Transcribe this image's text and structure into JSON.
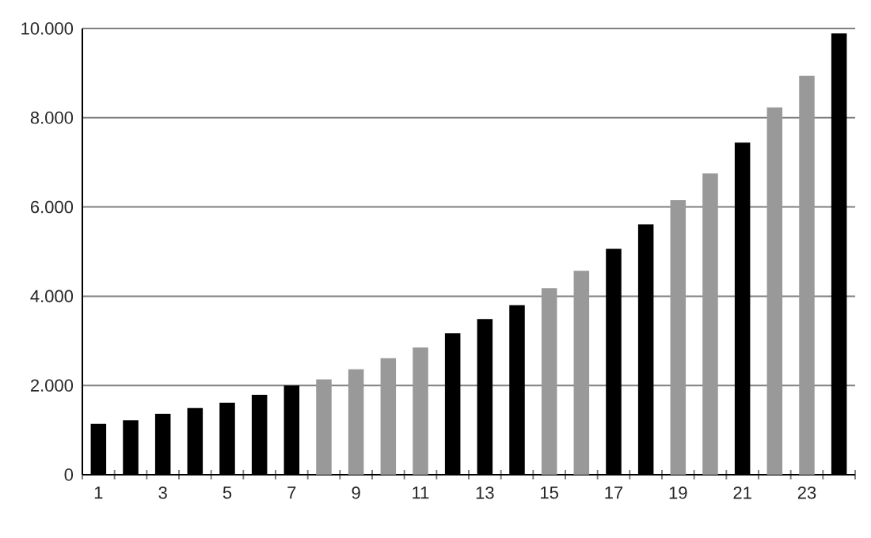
{
  "chart_data": {
    "type": "bar",
    "categories": [
      "1",
      null,
      "3",
      null,
      "5",
      null,
      "7",
      null,
      "9",
      null,
      "11",
      null,
      "13",
      null,
      "15",
      null,
      "17",
      null,
      "19",
      null,
      "21",
      null,
      "23",
      null
    ],
    "values": [
      1140,
      1220,
      1365,
      1495,
      1615,
      1790,
      2000,
      2135,
      2360,
      2610,
      2850,
      3170,
      3490,
      3800,
      4180,
      4570,
      5060,
      5610,
      6150,
      6750,
      7440,
      8230,
      8940,
      9890
    ],
    "colors": [
      "#000000",
      "#000000",
      "#000000",
      "#000000",
      "#000000",
      "#000000",
      "#000000",
      "#999999",
      "#999999",
      "#999999",
      "#999999",
      "#000000",
      "#000000",
      "#000000",
      "#999999",
      "#999999",
      "#000000",
      "#000000",
      "#999999",
      "#999999",
      "#000000",
      "#999999",
      "#999999",
      "#000000"
    ],
    "ylim": [
      0,
      10000
    ],
    "yticks": [
      {
        "value": 0,
        "label": "0"
      },
      {
        "value": 2000,
        "label": "2.000"
      },
      {
        "value": 4000,
        "label": "4.000"
      },
      {
        "value": 6000,
        "label": "6.000"
      },
      {
        "value": 8000,
        "label": "8.000"
      },
      {
        "value": 10000,
        "label": "10.000"
      }
    ],
    "grid": "y"
  }
}
